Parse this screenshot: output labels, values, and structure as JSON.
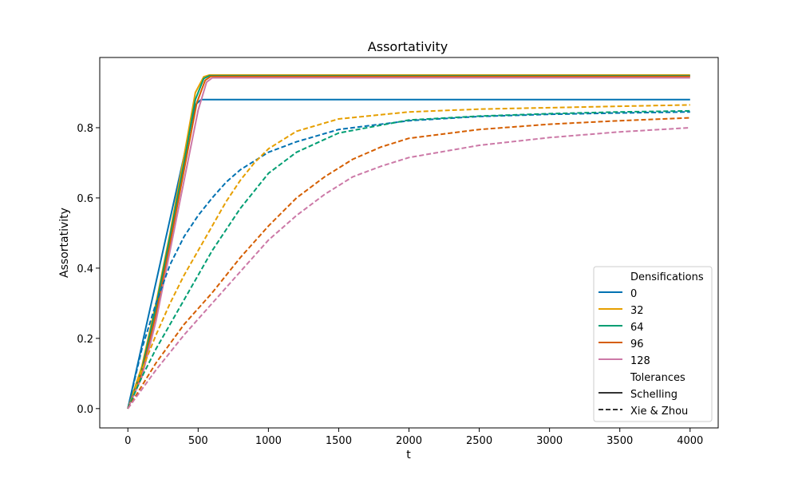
{
  "chart_data": {
    "type": "line",
    "title": "Assortativity",
    "xlabel": "t",
    "ylabel": "Assortativity",
    "xlim": [
      -200,
      4200
    ],
    "ylim": [
      -0.055,
      1.0
    ],
    "xticks": [
      0,
      500,
      1000,
      1500,
      2000,
      2500,
      3000,
      3500,
      4000
    ],
    "yticks": [
      0.0,
      0.2,
      0.4,
      0.6,
      0.8
    ],
    "xtick_labels": [
      "0",
      "500",
      "1000",
      "1500",
      "2000",
      "2500",
      "3000",
      "3500",
      "4000"
    ],
    "ytick_labels": [
      "0.0",
      "0.2",
      "0.4",
      "0.6",
      "0.8"
    ],
    "grid": false,
    "legend": {
      "position": "lower-right",
      "group_titles": [
        "Densifications",
        "Tolerances"
      ],
      "densifications": [
        {
          "label": "0",
          "color": "#0072b2"
        },
        {
          "label": "32",
          "color": "#e69f00"
        },
        {
          "label": "64",
          "color": "#009e73"
        },
        {
          "label": "96",
          "color": "#d55e00"
        },
        {
          "label": "128",
          "color": "#cc79a7"
        }
      ],
      "tolerances": [
        {
          "label": "Schelling",
          "style": "solid"
        },
        {
          "label": "Xie & Zhou",
          "style": "dashed"
        }
      ]
    },
    "series": [
      {
        "densification": "0",
        "tolerance": "Schelling",
        "color": "#0072b2",
        "style": "solid",
        "x": [
          0,
          100,
          200,
          300,
          400,
          480,
          520,
          1000,
          2000,
          3000,
          4000
        ],
        "y": [
          0.0,
          0.18,
          0.36,
          0.54,
          0.72,
          0.865,
          0.88,
          0.88,
          0.88,
          0.88,
          0.88
        ]
      },
      {
        "densification": "32",
        "tolerance": "Schelling",
        "color": "#e69f00",
        "style": "solid",
        "x": [
          0,
          100,
          200,
          300,
          400,
          480,
          540,
          580,
          1000,
          2000,
          3000,
          4000
        ],
        "y": [
          0.0,
          0.12,
          0.3,
          0.5,
          0.72,
          0.9,
          0.945,
          0.95,
          0.95,
          0.95,
          0.95,
          0.95
        ]
      },
      {
        "densification": "64",
        "tolerance": "Schelling",
        "color": "#009e73",
        "style": "solid",
        "x": [
          0,
          100,
          200,
          300,
          400,
          480,
          540,
          580,
          1000,
          2000,
          3000,
          4000
        ],
        "y": [
          0.0,
          0.11,
          0.29,
          0.49,
          0.7,
          0.88,
          0.94,
          0.948,
          0.948,
          0.948,
          0.948,
          0.948
        ]
      },
      {
        "densification": "96",
        "tolerance": "Schelling",
        "color": "#d55e00",
        "style": "solid",
        "x": [
          0,
          100,
          200,
          300,
          400,
          490,
          550,
          590,
          1000,
          2000,
          3000,
          4000
        ],
        "y": [
          0.0,
          0.1,
          0.27,
          0.47,
          0.68,
          0.87,
          0.935,
          0.946,
          0.946,
          0.946,
          0.946,
          0.946
        ]
      },
      {
        "densification": "128",
        "tolerance": "Schelling",
        "color": "#cc79a7",
        "style": "solid",
        "x": [
          0,
          100,
          200,
          300,
          400,
          500,
          560,
          600,
          1000,
          2000,
          3000,
          4000
        ],
        "y": [
          0.0,
          0.09,
          0.25,
          0.45,
          0.65,
          0.85,
          0.93,
          0.942,
          0.942,
          0.942,
          0.942,
          0.942
        ]
      },
      {
        "densification": "0",
        "tolerance": "Xie & Zhou",
        "color": "#0072b2",
        "style": "dashed",
        "x": [
          0,
          100,
          200,
          300,
          400,
          500,
          600,
          700,
          800,
          1000,
          1200,
          1500,
          2000,
          2500,
          3000,
          3500,
          4000
        ],
        "y": [
          0.0,
          0.17,
          0.3,
          0.41,
          0.49,
          0.55,
          0.6,
          0.645,
          0.68,
          0.73,
          0.76,
          0.795,
          0.82,
          0.832,
          0.838,
          0.842,
          0.845
        ]
      },
      {
        "densification": "32",
        "tolerance": "Xie & Zhou",
        "color": "#e69f00",
        "style": "dashed",
        "x": [
          0,
          100,
          200,
          300,
          400,
          500,
          600,
          700,
          800,
          900,
          1000,
          1200,
          1500,
          2000,
          2500,
          3000,
          3500,
          4000
        ],
        "y": [
          0.0,
          0.11,
          0.21,
          0.3,
          0.38,
          0.45,
          0.52,
          0.59,
          0.65,
          0.7,
          0.74,
          0.79,
          0.825,
          0.845,
          0.853,
          0.857,
          0.861,
          0.865
        ]
      },
      {
        "densification": "64",
        "tolerance": "Xie & Zhou",
        "color": "#009e73",
        "style": "dashed",
        "x": [
          0,
          100,
          200,
          300,
          400,
          500,
          600,
          700,
          800,
          900,
          1000,
          1200,
          1500,
          2000,
          2500,
          3000,
          3500,
          4000
        ],
        "y": [
          0.0,
          0.09,
          0.17,
          0.24,
          0.31,
          0.38,
          0.45,
          0.51,
          0.57,
          0.62,
          0.67,
          0.73,
          0.785,
          0.822,
          0.833,
          0.84,
          0.845,
          0.848
        ]
      },
      {
        "densification": "96",
        "tolerance": "Xie & Zhou",
        "color": "#d55e00",
        "style": "dashed",
        "x": [
          0,
          200,
          400,
          600,
          800,
          1000,
          1200,
          1400,
          1600,
          1800,
          2000,
          2500,
          3000,
          3500,
          4000
        ],
        "y": [
          0.0,
          0.13,
          0.24,
          0.33,
          0.43,
          0.52,
          0.6,
          0.66,
          0.71,
          0.745,
          0.77,
          0.795,
          0.81,
          0.82,
          0.828
        ]
      },
      {
        "densification": "128",
        "tolerance": "Xie & Zhou",
        "color": "#cc79a7",
        "style": "dashed",
        "x": [
          0,
          200,
          400,
          600,
          800,
          1000,
          1200,
          1400,
          1600,
          1800,
          2000,
          2500,
          3000,
          3500,
          4000
        ],
        "y": [
          0.0,
          0.11,
          0.21,
          0.3,
          0.39,
          0.48,
          0.55,
          0.61,
          0.66,
          0.69,
          0.715,
          0.75,
          0.772,
          0.788,
          0.8
        ]
      }
    ]
  }
}
